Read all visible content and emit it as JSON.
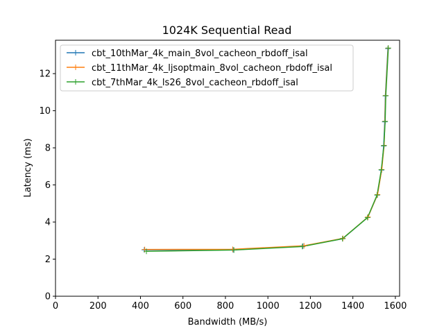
{
  "chart_data": {
    "type": "line",
    "title": "1024K  Sequential Read",
    "xlabel": "Bandwidth (MB/s)",
    "ylabel": "Latency (ms)",
    "xlim": [
      0,
      1620
    ],
    "ylim": [
      0,
      13.8
    ],
    "xticks": [
      0,
      200,
      400,
      600,
      800,
      1000,
      1200,
      1400,
      1600
    ],
    "yticks": [
      0,
      2,
      4,
      6,
      8,
      10,
      12
    ],
    "marker": "+",
    "grid": false,
    "legend_position": "top-left",
    "series": [
      {
        "name": "cbt_10thMar_4k_main_8vol_cacheon_rbdoff_isal",
        "color": "#1f77b4",
        "x": [
          418,
          836,
          1165,
          1352,
          1470,
          1515,
          1535,
          1545,
          1550,
          1553,
          1565
        ],
        "y": [
          2.5,
          2.5,
          2.7,
          3.1,
          4.25,
          5.45,
          6.8,
          8.1,
          9.4,
          10.8,
          13.35
        ]
      },
      {
        "name": "cbt_11thMar_4k_ljsoptmain_8vol_cacheon_rbdoff_isal",
        "color": "#ff7f0e",
        "x": [
          420,
          834,
          1170,
          1353,
          1471,
          1516,
          1536,
          1547,
          1551,
          1554,
          1566
        ],
        "y": [
          2.52,
          2.53,
          2.72,
          3.12,
          4.27,
          5.48,
          6.83,
          8.13,
          9.43,
          10.82,
          13.37
        ]
      },
      {
        "name": "cbt_7thMar_4k_ls26_8vol_cacheon_rbdoff_isal",
        "color": "#2ca02c",
        "x": [
          428,
          840,
          1162,
          1351,
          1469,
          1514,
          1534,
          1546,
          1552,
          1555,
          1567
        ],
        "y": [
          2.42,
          2.49,
          2.68,
          3.1,
          4.24,
          5.46,
          6.82,
          8.12,
          9.42,
          10.81,
          13.38
        ]
      }
    ]
  }
}
